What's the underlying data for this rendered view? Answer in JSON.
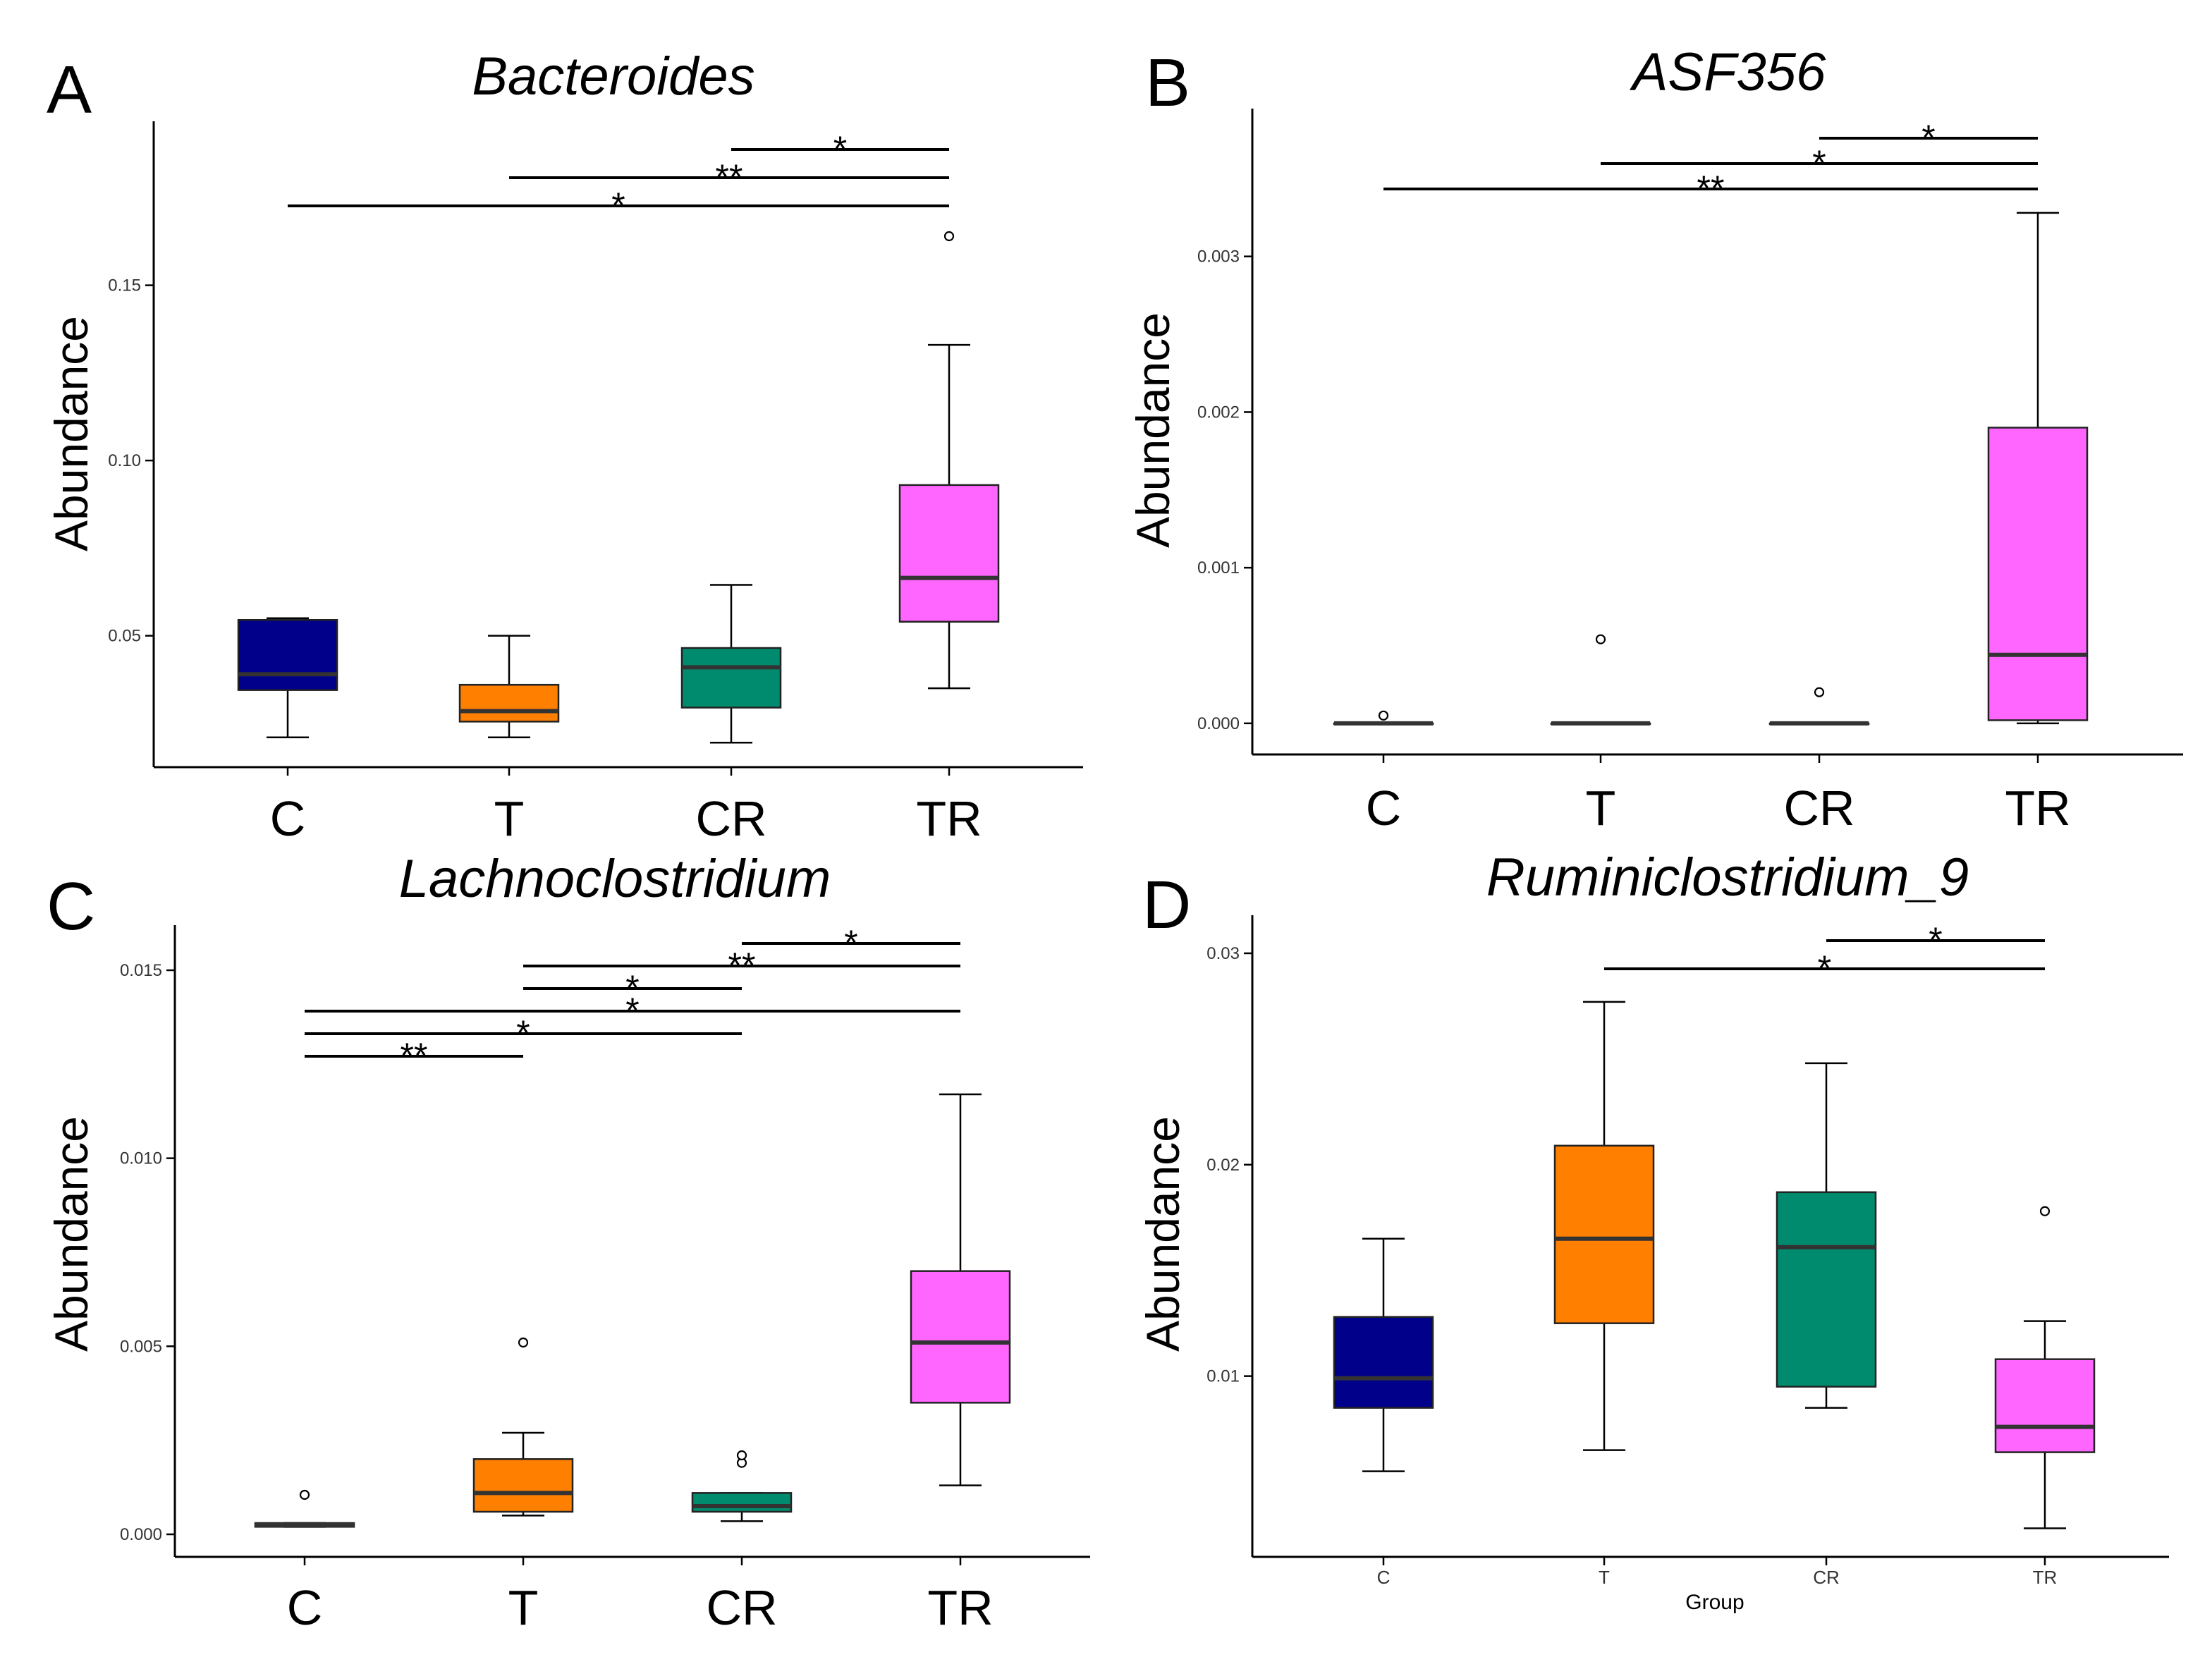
{
  "chart_data": [
    {
      "panel": "A",
      "type": "box",
      "title": "Bacteroides",
      "ylabel": "Abundance",
      "xlabel": "",
      "categories": [
        "C",
        "T",
        "CR",
        "TR"
      ],
      "colors": [
        "#00008B",
        "#FF7F00",
        "#008B6E",
        "#FF66FF"
      ],
      "ylim": [
        0.0125,
        0.1968
      ],
      "yticks": [
        0.05,
        0.1,
        0.15
      ],
      "ytick_labels": [
        "0.05",
        "0.10",
        "0.15"
      ],
      "boxes": [
        {
          "min": 0.021,
          "q1": 0.0345,
          "median": 0.039,
          "q3": 0.0545,
          "max": 0.055,
          "outliers": []
        },
        {
          "min": 0.021,
          "q1": 0.0255,
          "median": 0.0285,
          "q3": 0.036,
          "max": 0.05,
          "outliers": []
        },
        {
          "min": 0.0195,
          "q1": 0.0295,
          "median": 0.041,
          "q3": 0.0465,
          "max": 0.0645,
          "outliers": []
        },
        {
          "min": 0.035,
          "q1": 0.054,
          "median": 0.0665,
          "q3": 0.093,
          "max": 0.133,
          "outliers": [
            0.164
          ]
        }
      ],
      "significance": [
        {
          "from": 0,
          "to": 3,
          "label": "*",
          "level": 0
        },
        {
          "from": 1,
          "to": 3,
          "label": "**",
          "level": 1
        },
        {
          "from": 2,
          "to": 3,
          "label": "*",
          "level": 2
        }
      ]
    },
    {
      "panel": "B",
      "type": "box",
      "title": "ASF356",
      "ylabel": "Abundance",
      "xlabel": "",
      "categories": [
        "C",
        "T",
        "CR",
        "TR"
      ],
      "colors": [
        "#00008B",
        "#FF7F00",
        "#008B6E",
        "#FF66FF"
      ],
      "ylim": [
        -0.0002,
        0.00395
      ],
      "yticks": [
        0.0,
        0.001,
        0.002,
        0.003
      ],
      "ytick_labels": [
        "0.000",
        "0.001",
        "0.002",
        "0.003"
      ],
      "boxes": [
        {
          "min": 0.0,
          "q1": 0.0,
          "median": 0.0,
          "q3": 0.0,
          "max": 0.0,
          "outliers": [
            5e-05
          ]
        },
        {
          "min": 0.0,
          "q1": 0.0,
          "median": 0.0,
          "q3": 0.0,
          "max": 0.0,
          "outliers": [
            0.00054
          ]
        },
        {
          "min": 0.0,
          "q1": 0.0,
          "median": 0.0,
          "q3": 0.0,
          "max": 0.0,
          "outliers": [
            0.0002
          ]
        },
        {
          "min": 0.0,
          "q1": 2e-05,
          "median": 0.00044,
          "q3": 0.0019,
          "max": 0.00328,
          "outliers": []
        }
      ],
      "significance": [
        {
          "from": 0,
          "to": 3,
          "label": "**",
          "level": 0
        },
        {
          "from": 1,
          "to": 3,
          "label": "*",
          "level": 1
        },
        {
          "from": 2,
          "to": 3,
          "label": "*",
          "level": 2
        }
      ]
    },
    {
      "panel": "C",
      "type": "box",
      "title": "Lachnoclostridium",
      "ylabel": "Abundance",
      "xlabel": "",
      "categories": [
        "C",
        "T",
        "CR",
        "TR"
      ],
      "colors": [
        "#00008B",
        "#FF7F00",
        "#008B6E",
        "#FF66FF"
      ],
      "ylim": [
        -0.0006,
        0.0162
      ],
      "yticks": [
        0.0,
        0.005,
        0.01,
        0.015
      ],
      "ytick_labels": [
        "0.000",
        "0.005",
        "0.010",
        "0.015"
      ],
      "boxes": [
        {
          "min": 0.0002,
          "q1": 0.0002,
          "median": 0.00025,
          "q3": 0.0003,
          "max": 0.0003,
          "outliers": [
            0.00105
          ]
        },
        {
          "min": 0.0005,
          "q1": 0.0006,
          "median": 0.0011,
          "q3": 0.002,
          "max": 0.0027,
          "outliers": [
            0.0051
          ]
        },
        {
          "min": 0.00035,
          "q1": 0.0006,
          "median": 0.00075,
          "q3": 0.0011,
          "max": 0.0011,
          "outliers": [
            0.0019,
            0.0021
          ]
        },
        {
          "min": 0.0013,
          "q1": 0.0035,
          "median": 0.0051,
          "q3": 0.007,
          "max": 0.0117,
          "outliers": []
        }
      ],
      "significance": [
        {
          "from": 0,
          "to": 1,
          "label": "**",
          "level": 0
        },
        {
          "from": 0,
          "to": 2,
          "label": "*",
          "level": 1
        },
        {
          "from": 0,
          "to": 3,
          "label": "*",
          "level": 2
        },
        {
          "from": 1,
          "to": 2,
          "label": "*",
          "level": 3
        },
        {
          "from": 1,
          "to": 3,
          "label": "**",
          "level": 4
        },
        {
          "from": 2,
          "to": 3,
          "label": "*",
          "level": 5
        }
      ]
    },
    {
      "panel": "D",
      "type": "box",
      "title": "Ruminiclostridium_9",
      "ylabel": "Abundance",
      "xlabel": "Group",
      "categories": [
        "C",
        "T",
        "CR",
        "TR"
      ],
      "colors": [
        "#00008B",
        "#FF7F00",
        "#008B6E",
        "#FF66FF"
      ],
      "ylim": [
        0.00145,
        0.0318
      ],
      "yticks": [
        0.01,
        0.02,
        0.03
      ],
      "ytick_labels": [
        "0.01",
        "0.02",
        "0.03"
      ],
      "boxes": [
        {
          "min": 0.0055,
          "q1": 0.0085,
          "median": 0.0099,
          "q3": 0.0128,
          "max": 0.0165,
          "outliers": []
        },
        {
          "min": 0.0065,
          "q1": 0.0125,
          "median": 0.0165,
          "q3": 0.0209,
          "max": 0.0277,
          "outliers": []
        },
        {
          "min": 0.0085,
          "q1": 0.0095,
          "median": 0.0161,
          "q3": 0.0187,
          "max": 0.0248,
          "outliers": []
        },
        {
          "min": 0.0028,
          "q1": 0.0064,
          "median": 0.0076,
          "q3": 0.0108,
          "max": 0.0126,
          "outliers": [
            0.0178
          ]
        }
      ],
      "significance": [
        {
          "from": 1,
          "to": 3,
          "label": "*",
          "level": 0
        },
        {
          "from": 2,
          "to": 3,
          "label": "*",
          "level": 1
        }
      ]
    }
  ]
}
